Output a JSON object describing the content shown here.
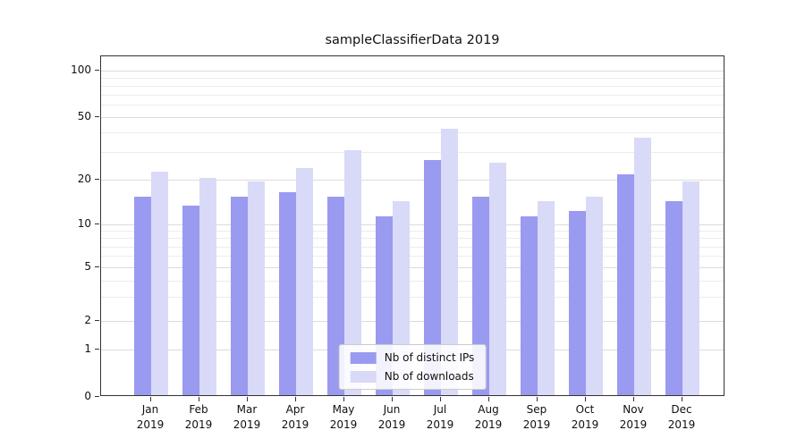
{
  "title": "sampleClassifierData 2019",
  "chart_data": {
    "type": "bar",
    "title": "sampleClassifierData 2019",
    "categories": [
      "Jan",
      "Feb",
      "Mar",
      "Apr",
      "May",
      "Jun",
      "Jul",
      "Aug",
      "Sep",
      "Oct",
      "Nov",
      "Dec"
    ],
    "x_year": "2019",
    "series": [
      {
        "name": "Nb of distinct IPs",
        "color": "#9a9af0",
        "values": [
          15,
          13,
          15,
          16,
          15,
          11,
          26,
          15,
          11,
          12,
          21,
          14
        ]
      },
      {
        "name": "Nb of downloads",
        "color": "#d9d9f8",
        "values": [
          22,
          20,
          19,
          23,
          30,
          14,
          41,
          25,
          14,
          15,
          36,
          19
        ]
      }
    ],
    "yscale": "symlog",
    "yticks": [
      0,
      1,
      2,
      5,
      10,
      20,
      50,
      100
    ],
    "ylim": [
      0,
      130
    ],
    "grid": true,
    "legend_position": "lower center"
  }
}
